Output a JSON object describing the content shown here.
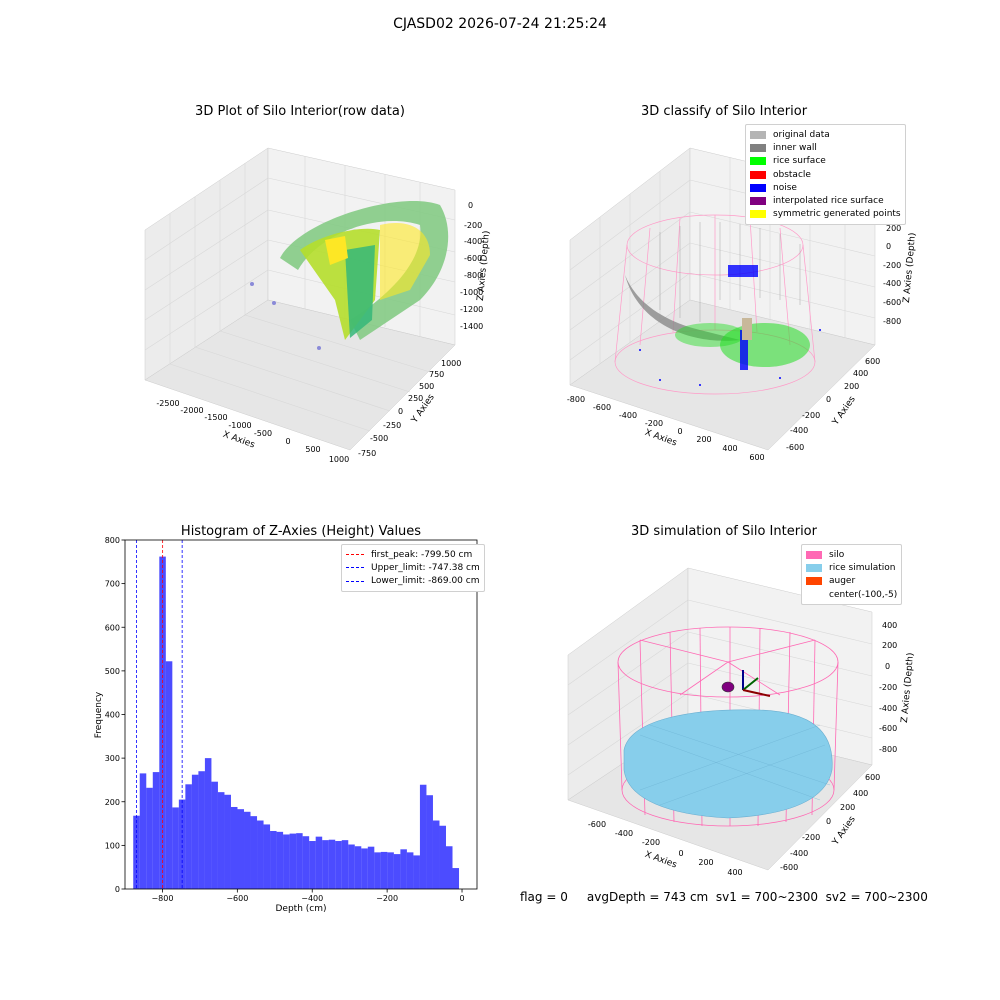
{
  "suptitle": "CJASD02 2026-07-24 21:25:24",
  "panels": {
    "raw": {
      "title": "3D Plot of Silo Interior(row data)",
      "x_label": "X Axies",
      "y_label": "Y Axies",
      "z_label": "Z Axies (Depth)",
      "x_ticks": [
        "-2500",
        "-2000",
        "-1500",
        "-1000",
        "-500",
        "0",
        "500",
        "1000"
      ],
      "y_ticks": [
        "-750",
        "-500",
        "-250",
        "0",
        "250",
        "500",
        "750",
        "1000"
      ],
      "z_ticks": [
        "0",
        "-200",
        "-400",
        "-600",
        "-800",
        "-1000",
        "-1200",
        "-1400"
      ]
    },
    "classify": {
      "title": "3D classify of Silo Interior",
      "x_label": "X Axies",
      "y_label": "Y Axies",
      "z_label": "Z Axies (Depth)",
      "x_ticks": [
        "-800",
        "-600",
        "-400",
        "-200",
        "0",
        "200",
        "400",
        "600"
      ],
      "y_ticks": [
        "-600",
        "-400",
        "-200",
        "0",
        "200",
        "400",
        "600"
      ],
      "z_ticks": [
        "400",
        "200",
        "0",
        "-200",
        "-400",
        "-600",
        "-800"
      ],
      "legend": [
        {
          "label": "original data",
          "color": "#b4b4b4"
        },
        {
          "label": "inner wall",
          "color": "#808080"
        },
        {
          "label": "rice surface",
          "color": "#00ff00"
        },
        {
          "label": "obstacle",
          "color": "#ff0000"
        },
        {
          "label": "noise",
          "color": "#0000ff"
        },
        {
          "label": "interpolated rice surface",
          "color": "#800080"
        },
        {
          "label": "symmetric generated points",
          "color": "#ffff00"
        }
      ]
    },
    "simulation": {
      "title": "3D simulation of Silo Interior",
      "x_label": "X Axies",
      "y_label": "Y Axies",
      "z_label": "Z Axies (Depth)",
      "x_ticks": [
        "-600",
        "-400",
        "-200",
        "0",
        "200",
        "400"
      ],
      "y_ticks": [
        "-600",
        "-400",
        "-200",
        "0",
        "200",
        "400",
        "600"
      ],
      "z_ticks": [
        "400",
        "200",
        "0",
        "-200",
        "-400",
        "-600",
        "-800"
      ],
      "legend": [
        {
          "label": "silo",
          "color": "#ff69b4"
        },
        {
          "label": "rice simulation",
          "color": "#87ceeb"
        },
        {
          "label": "auger",
          "color": "#ff4500"
        },
        {
          "label": "center(-100,-5)",
          "color": "#ffffff"
        }
      ]
    }
  },
  "footer": {
    "text": "flag = 0     avgDepth = 743 cm  sv1 = 700~2300  sv2 = 700~2300"
  },
  "chart_data": {
    "type": "bar",
    "title": "Histogram of Z-Axies (Height) Values",
    "xlabel": "Depth (cm)",
    "ylabel": "Frequency",
    "xlim": [
      -900,
      40
    ],
    "ylim": [
      0,
      800
    ],
    "x_ticks": [
      -800,
      -600,
      -400,
      -200,
      0
    ],
    "y_ticks": [
      0,
      100,
      200,
      300,
      400,
      500,
      600,
      700,
      800
    ],
    "bar_color": "#0000ff",
    "bin_width": 17.4,
    "bin_start": -878,
    "values": [
      168,
      265,
      232,
      268,
      762,
      522,
      187,
      205,
      240,
      262,
      270,
      300,
      246,
      222,
      216,
      188,
      183,
      177,
      167,
      157,
      148,
      133,
      131,
      125,
      127,
      128,
      121,
      110,
      120,
      112,
      113,
      110,
      112,
      102,
      98,
      93,
      97,
      84,
      85,
      84,
      80,
      91,
      84,
      77,
      239,
      215,
      157,
      145,
      98,
      48
    ],
    "lines": [
      {
        "name": "first_peak: -799.50 cm",
        "x": -799.5,
        "color": "#ff0000"
      },
      {
        "name": "Upper_limit: -747.38 cm",
        "x": -747.38,
        "color": "#0000ff"
      },
      {
        "name": "Lower_limit: -869.00 cm",
        "x": -869.0,
        "color": "#0000ff"
      }
    ],
    "legend_position": "top-right"
  }
}
